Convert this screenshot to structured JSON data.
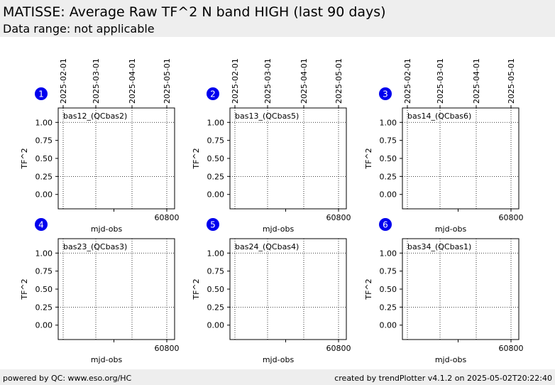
{
  "header": {
    "title": "MATISSE: Average Raw TF^2 N band HIGH (last 90 days)",
    "subtitle": "Data range: not applicable"
  },
  "footer": {
    "left": "powered by QC: www.eso.org/HC",
    "right": "created by trendPlotter v4.1.2 on 2025-05-02T20:22:40"
  },
  "colors": {
    "header_bg": "#eeeeee",
    "badge": "#0000ee",
    "axes": "#000000",
    "grid": "#000000"
  },
  "chart_data": [
    {
      "type": "scatter",
      "panel_number": "1",
      "legend": "bas12_(QCbas2)",
      "xlabel": "mjd-obs",
      "ylabel": "TF^2",
      "x_ticks": [
        "60800"
      ],
      "top_ticks": [
        "2025-02-01",
        "2025-03-01",
        "2025-04-01",
        "2025-05-01"
      ],
      "y_ticks": [
        "0.00",
        "0.25",
        "0.50",
        "0.75",
        "1.00"
      ],
      "ylim": [
        -0.2,
        1.2
      ],
      "series": []
    },
    {
      "type": "scatter",
      "panel_number": "2",
      "legend": "bas13_(QCbas5)",
      "xlabel": "mjd-obs",
      "ylabel": "TF^2",
      "x_ticks": [
        "60800"
      ],
      "top_ticks": [
        "2025-02-01",
        "2025-03-01",
        "2025-04-01",
        "2025-05-01"
      ],
      "y_ticks": [
        "0.00",
        "0.25",
        "0.50",
        "0.75",
        "1.00"
      ],
      "ylim": [
        -0.2,
        1.2
      ],
      "series": []
    },
    {
      "type": "scatter",
      "panel_number": "3",
      "legend": "bas14_(QCbas6)",
      "xlabel": "mjd-obs",
      "ylabel": "TF^2",
      "x_ticks": [
        "60800"
      ],
      "top_ticks": [
        "2025-02-01",
        "2025-03-01",
        "2025-04-01",
        "2025-05-01"
      ],
      "y_ticks": [
        "0.00",
        "0.25",
        "0.50",
        "0.75",
        "1.00"
      ],
      "ylim": [
        -0.2,
        1.2
      ],
      "series": []
    },
    {
      "type": "scatter",
      "panel_number": "4",
      "legend": "bas23_(QCbas3)",
      "xlabel": "mjd-obs",
      "ylabel": "TF^2",
      "x_ticks": [
        "60800"
      ],
      "top_ticks": [],
      "y_ticks": [
        "0.00",
        "0.25",
        "0.50",
        "0.75",
        "1.00"
      ],
      "ylim": [
        -0.2,
        1.2
      ],
      "series": []
    },
    {
      "type": "scatter",
      "panel_number": "5",
      "legend": "bas24_(QCbas4)",
      "xlabel": "mjd-obs",
      "ylabel": "TF^2",
      "x_ticks": [
        "60800"
      ],
      "top_ticks": [],
      "y_ticks": [
        "0.00",
        "0.25",
        "0.50",
        "0.75",
        "1.00"
      ],
      "ylim": [
        -0.2,
        1.2
      ],
      "series": []
    },
    {
      "type": "scatter",
      "panel_number": "6",
      "legend": "bas34_(QCbas1)",
      "xlabel": "mjd-obs",
      "ylabel": "TF^2",
      "x_ticks": [
        "60800"
      ],
      "top_ticks": [],
      "y_ticks": [
        "0.00",
        "0.25",
        "0.50",
        "0.75",
        "1.00"
      ],
      "ylim": [
        -0.2,
        1.2
      ],
      "series": []
    }
  ]
}
